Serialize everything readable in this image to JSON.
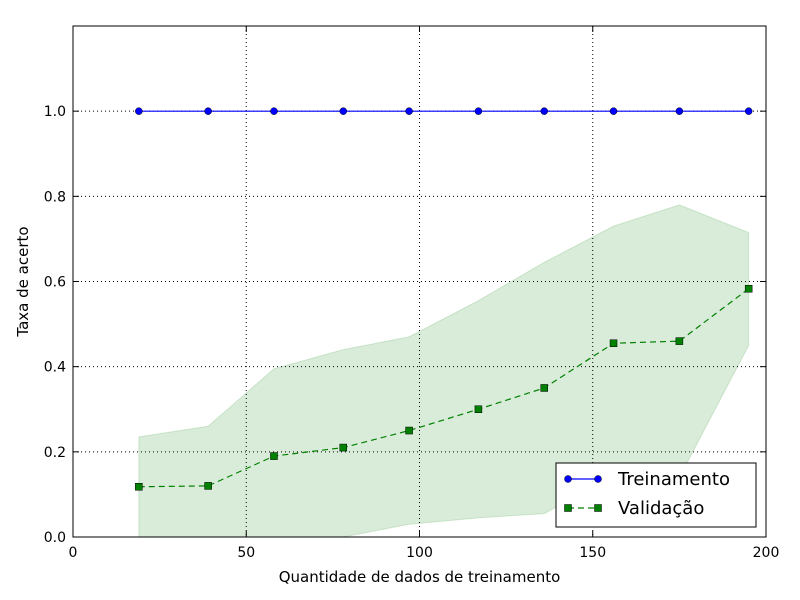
{
  "chart_data": {
    "type": "line",
    "title": "",
    "xlabel": "Quantidade de dados de treinamento",
    "ylabel": "Taxa de acerto",
    "xlim": [
      0,
      200
    ],
    "ylim": [
      0,
      1.2
    ],
    "xticks": [
      0,
      50,
      100,
      150,
      200
    ],
    "yticks": [
      0.0,
      0.2,
      0.4,
      0.6,
      0.8,
      1.0
    ],
    "xtick_labels": [
      "0",
      "50",
      "100",
      "150",
      "200"
    ],
    "ytick_labels": [
      "0.0",
      "0.2",
      "0.4",
      "0.6",
      "0.8",
      "1.0"
    ],
    "grid": true,
    "legend_position": "lower-right",
    "x": [
      19,
      39,
      58,
      78,
      97,
      117,
      136,
      156,
      175,
      195
    ],
    "series": [
      {
        "name": "Treinamento",
        "values": [
          1.0,
          1.0,
          1.0,
          1.0,
          1.0,
          1.0,
          1.0,
          1.0,
          1.0,
          1.0
        ],
        "color": "#0000ff",
        "marker": "circle",
        "line_style": "solid"
      },
      {
        "name": "Validação",
        "values": [
          0.118,
          0.12,
          0.19,
          0.21,
          0.25,
          0.3,
          0.35,
          0.455,
          0.46,
          0.583
        ],
        "color": "#008000",
        "marker": "square",
        "line_style": "dashed",
        "band_upper": [
          0.235,
          0.26,
          0.395,
          0.44,
          0.47,
          0.555,
          0.645,
          0.73,
          0.78,
          0.715
        ],
        "band_lower": [
          0.0,
          0.0,
          0.0,
          0.0,
          0.03,
          0.045,
          0.055,
          0.145,
          0.14,
          0.45
        ],
        "band_color": "#008000"
      }
    ]
  }
}
